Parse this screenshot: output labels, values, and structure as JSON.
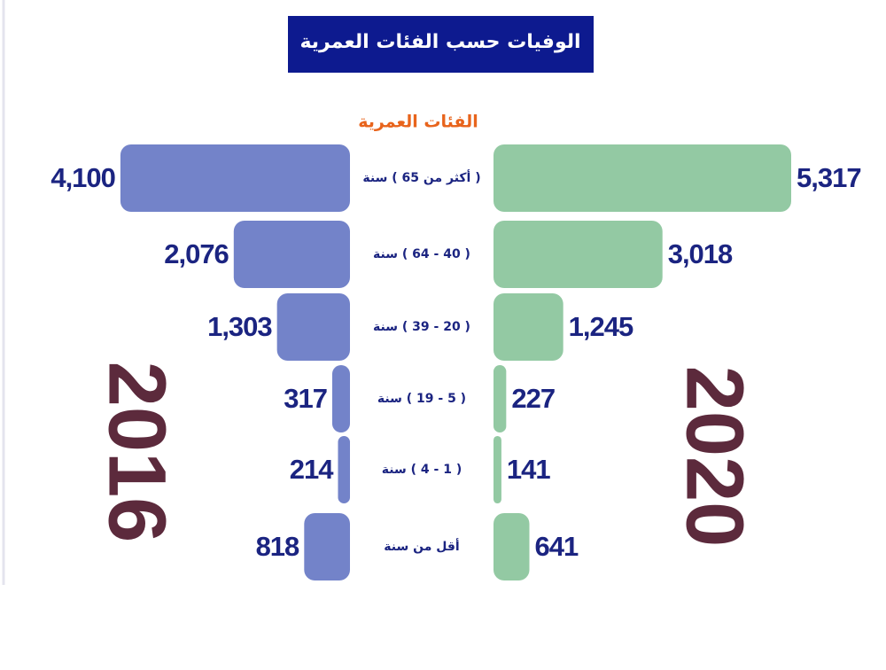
{
  "chart_data": {
    "type": "bar",
    "title": "الوفيات حسب الفئات العمرية",
    "subtitle": "الفئات العمرية",
    "categories": [
      "( أكثر من 65 ) سنة",
      "( 40 - 64 ) سنة",
      "( 20 - 39 ) سنة",
      "( 5 - 19 ) سنة",
      "( 1 - 4 ) سنة",
      "أقل من سنة"
    ],
    "series": [
      {
        "name": "2016",
        "color": "#7383c9",
        "values": [
          4100,
          2076,
          1303,
          317,
          214,
          818
        ],
        "value_labels": [
          "4,100",
          "2,076",
          "1,303",
          "317",
          "214",
          "818"
        ]
      },
      {
        "name": "2020",
        "color": "#93c9a3",
        "values": [
          5317,
          3018,
          1245,
          227,
          141,
          641
        ],
        "value_labels": [
          "5,317",
          "3,018",
          "1,245",
          "227",
          "141",
          "641"
        ]
      }
    ]
  }
}
